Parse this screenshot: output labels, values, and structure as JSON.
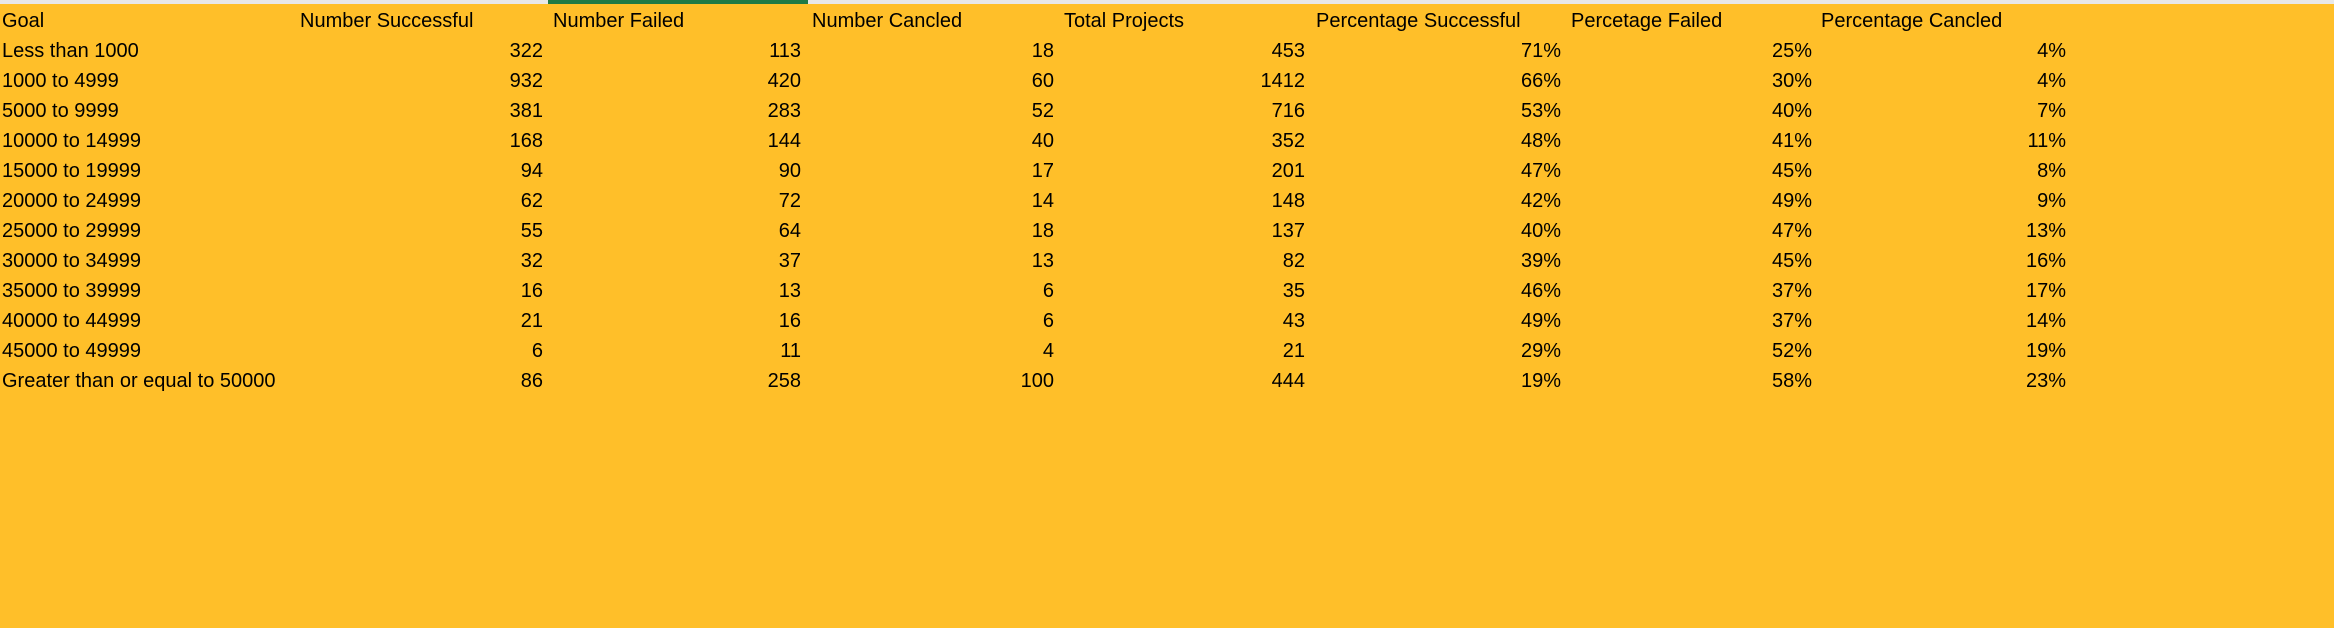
{
  "sheet": {
    "headers": [
      "Goal",
      "Number Successful",
      "Number Failed",
      "Number Cancled",
      "Total Projects",
      "Percentage Successful",
      "Percetage Failed",
      "Percentage Cancled"
    ],
    "rows": [
      [
        "Less than 1000",
        "322",
        "113",
        "18",
        "453",
        "71%",
        "25%",
        "4%"
      ],
      [
        "1000 to 4999",
        "932",
        "420",
        "60",
        "1412",
        "66%",
        "30%",
        "4%"
      ],
      [
        "5000 to 9999",
        "381",
        "283",
        "52",
        "716",
        "53%",
        "40%",
        "7%"
      ],
      [
        "10000 to 14999",
        "168",
        "144",
        "40",
        "352",
        "48%",
        "41%",
        "11%"
      ],
      [
        "15000 to 19999",
        "94",
        "90",
        "17",
        "201",
        "47%",
        "45%",
        "8%"
      ],
      [
        "20000 to 24999",
        "62",
        "72",
        "14",
        "148",
        "42%",
        "49%",
        "9%"
      ],
      [
        "25000 to 29999",
        "55",
        "64",
        "18",
        "137",
        "40%",
        "47%",
        "13%"
      ],
      [
        "30000 to 34999",
        "32",
        "37",
        "13",
        "82",
        "39%",
        "45%",
        "16%"
      ],
      [
        "35000 to 39999",
        "16",
        "13",
        "6",
        "35",
        "46%",
        "37%",
        "17%"
      ],
      [
        "40000 to 44999",
        "21",
        "16",
        "6",
        "43",
        "49%",
        "37%",
        "14%"
      ],
      [
        "45000 to 49999",
        "6",
        "11",
        "4",
        "21",
        "29%",
        "52%",
        "19%"
      ],
      [
        "Greater than or equal to 50000",
        "86",
        "258",
        "100",
        "444",
        "19%",
        "58%",
        "23%"
      ]
    ],
    "fill_color": "#FFBF29",
    "selected_column_color": "#1F7A45"
  }
}
